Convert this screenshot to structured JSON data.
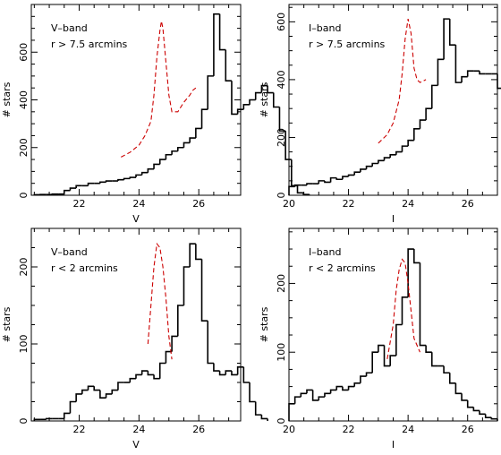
{
  "chart_data": [
    {
      "type": "histogram",
      "annotations": [
        "V–band",
        "r > 7.5 arcmins"
      ],
      "xlabel": "V",
      "ylabel": "# stars",
      "xlim": [
        20.4,
        27.4
      ],
      "ylim": [
        0,
        800
      ],
      "xticks": [
        22,
        24,
        26
      ],
      "yticks": [
        0,
        200,
        400,
        600
      ],
      "bin_width": 0.2,
      "bin_start": 20.5,
      "values": [
        2,
        3,
        3,
        5,
        5,
        20,
        30,
        40,
        40,
        50,
        50,
        55,
        60,
        60,
        65,
        70,
        75,
        85,
        95,
        110,
        130,
        150,
        170,
        185,
        200,
        220,
        240,
        280,
        360,
        500,
        760,
        610,
        480,
        340,
        360,
        380,
        400,
        430,
        460,
        430,
        370,
        270,
        150,
        40,
        10,
        3
      ],
      "fit": {
        "style": "dashed",
        "color": "#cc0000",
        "x": [
          23.4,
          23.7,
          24.0,
          24.2,
          24.4,
          24.5,
          24.6,
          24.7,
          24.75,
          24.8,
          24.9,
          25.0,
          25.1,
          25.3,
          25.5,
          25.7,
          25.8,
          25.9
        ],
        "y": [
          160,
          180,
          210,
          250,
          310,
          420,
          580,
          690,
          730,
          700,
          560,
          420,
          350,
          350,
          390,
          420,
          440,
          450
        ]
      }
    },
    {
      "type": "histogram",
      "annotations": [
        "I–band",
        "r > 7.5 arcmins"
      ],
      "xlabel": "I",
      "ylabel": "# stars",
      "xlim": [
        20.0,
        27.0
      ],
      "ylim": [
        0,
        660
      ],
      "xticks": [
        20,
        22,
        24,
        26
      ],
      "yticks": [
        0,
        200,
        400,
        600
      ],
      "bin_width": 0.2,
      "bin_start": 20.0,
      "values": [
        30,
        35,
        35,
        40,
        40,
        50,
        45,
        60,
        55,
        65,
        70,
        80,
        90,
        100,
        110,
        120,
        130,
        140,
        150,
        170,
        190,
        230,
        260,
        300,
        380,
        470,
        610,
        520,
        390,
        410,
        430,
        430,
        420,
        420,
        420,
        370,
        240,
        130,
        60,
        30,
        15,
        10,
        5
      ],
      "fit": {
        "style": "dashed",
        "color": "#cc0000",
        "x": [
          23.0,
          23.3,
          23.5,
          23.7,
          23.8,
          23.9,
          24.0,
          24.1,
          24.2,
          24.3,
          24.4,
          24.6
        ],
        "y": [
          180,
          210,
          250,
          330,
          420,
          540,
          610,
          560,
          440,
          400,
          390,
          400
        ]
      }
    },
    {
      "type": "histogram",
      "annotations": [
        "V–band",
        "r < 2 arcmins"
      ],
      "xlabel": "V",
      "ylabel": "# stars",
      "xlim": [
        20.4,
        27.4
      ],
      "ylim": [
        0,
        250
      ],
      "xticks": [
        22,
        24,
        26
      ],
      "yticks": [
        0,
        100,
        200
      ],
      "bin_width": 0.2,
      "bin_start": 20.5,
      "values": [
        2,
        2,
        3,
        3,
        3,
        10,
        25,
        35,
        40,
        45,
        40,
        30,
        35,
        40,
        50,
        50,
        55,
        60,
        65,
        60,
        55,
        75,
        90,
        110,
        150,
        200,
        230,
        210,
        130,
        75,
        65,
        60,
        65,
        60,
        70,
        50,
        25,
        8,
        3
      ],
      "fit": {
        "style": "dashed",
        "color": "#cc0000",
        "x": [
          24.3,
          24.4,
          24.5,
          24.6,
          24.7,
          24.8,
          24.9,
          25.0,
          25.1
        ],
        "y": [
          100,
          150,
          200,
          230,
          225,
          200,
          160,
          110,
          80
        ]
      }
    },
    {
      "type": "histogram",
      "annotations": [
        "I–band",
        "r < 2 arcmins"
      ],
      "xlabel": "I",
      "ylabel": "# stars",
      "xlim": [
        20.0,
        27.0
      ],
      "ylim": [
        0,
        280
      ],
      "xticks": [
        20,
        22,
        24,
        26
      ],
      "yticks": [
        0,
        100,
        200
      ],
      "bin_width": 0.2,
      "bin_start": 20.0,
      "values": [
        25,
        35,
        40,
        45,
        30,
        35,
        40,
        45,
        50,
        45,
        50,
        55,
        65,
        70,
        100,
        110,
        80,
        95,
        140,
        180,
        250,
        230,
        110,
        100,
        80,
        80,
        70,
        55,
        40,
        30,
        20,
        15,
        10,
        5,
        3
      ],
      "fit": {
        "style": "dashed",
        "color": "#cc0000",
        "x": [
          23.3,
          23.5,
          23.6,
          23.7,
          23.8,
          23.9,
          24.0,
          24.1,
          24.2,
          24.4
        ],
        "y": [
          90,
          140,
          190,
          220,
          235,
          230,
          200,
          160,
          120,
          100
        ]
      }
    }
  ]
}
